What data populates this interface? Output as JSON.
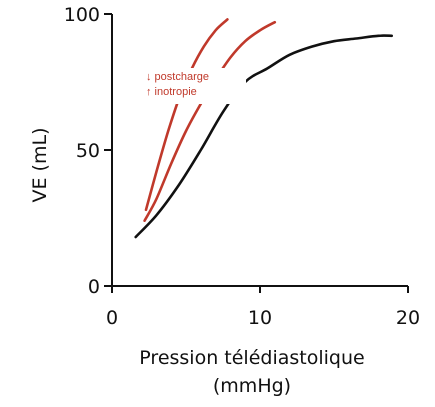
{
  "chart_data": {
    "type": "line",
    "title": "",
    "xlabel_lines": [
      "Pression télédiastolique",
      "(mmHg)"
    ],
    "ylabel": "VE (mL)",
    "xlim": [
      0,
      20
    ],
    "ylim": [
      0,
      100
    ],
    "xticks": [
      0,
      10,
      20
    ],
    "yticks": [
      0,
      50,
      100
    ],
    "grid": false,
    "annotations": [
      "↓ postcharge",
      "↑ inotropie"
    ],
    "colors": {
      "baseline": "#111111",
      "shifted": "#c0392b"
    },
    "series": [
      {
        "key": "baseline",
        "color_key": "baseline",
        "x": [
          1.6,
          3.0,
          4.5,
          6.0,
          7.5,
          9.0,
          10.5,
          12.0,
          13.5,
          15.0,
          16.5,
          18.0,
          18.9
        ],
        "y": [
          18,
          26,
          37,
          50,
          64,
          75,
          80,
          85,
          88,
          90,
          91,
          92,
          92
        ]
      },
      {
        "key": "shifted_1",
        "color_key": "shifted",
        "x": [
          2.2,
          3.0,
          4.0,
          5.0,
          6.0,
          7.0,
          8.0,
          9.0,
          10.0,
          11.0
        ],
        "y": [
          24,
          32,
          45,
          57,
          67,
          76,
          84,
          90,
          94,
          97
        ]
      },
      {
        "key": "shifted_2",
        "color_key": "shifted",
        "x": [
          2.3,
          3.0,
          3.8,
          4.6,
          5.4,
          6.2,
          7.0,
          7.8
        ],
        "y": [
          28,
          42,
          57,
          70,
          80,
          88,
          94,
          98
        ]
      }
    ]
  }
}
